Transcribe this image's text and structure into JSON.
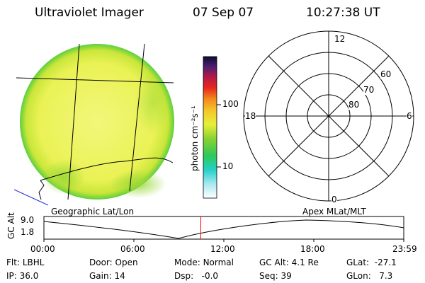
{
  "header": {
    "instrument": "Ultraviolet Imager",
    "date": "07 Sep 07",
    "time": "10:27:38 UT"
  },
  "colorbar": {
    "unit_label": "photon cm⁻²s⁻¹",
    "ticks": [
      "100",
      "10"
    ],
    "scale": "log"
  },
  "polar_plot": {
    "mlt_labels": [
      "12",
      "18",
      "6",
      "0"
    ],
    "lat_labels": [
      "60",
      "70",
      "80"
    ]
  },
  "frames": {
    "left_caption": "Geographic Lat/Lon",
    "right_caption": "Apex  MLat/MLT"
  },
  "altitude_panel": {
    "ylabel": "GC Alt",
    "ytick_top": "9.0",
    "ytick_bottom": "1.8",
    "xticks": [
      "00:00",
      "06:00",
      "12:00",
      "18:00",
      "23:59"
    ],
    "marker_color": "#ff0000",
    "current_time_fraction": 0.436
  },
  "status": {
    "row1": [
      {
        "label": "Flt:",
        "value": "LBHL"
      },
      {
        "label": "Door:",
        "value": "Open"
      },
      {
        "label": "Mode:",
        "value": "Normal"
      },
      {
        "label": "GC Alt:",
        "value": "4.1 Re"
      },
      {
        "label": "GLat:",
        "value": "-27.1"
      }
    ],
    "row2": [
      {
        "label": "IP:",
        "value": "36.0"
      },
      {
        "label": "Gain:",
        "value": "14"
      },
      {
        "label": "Dsp:",
        "value": "-0.0"
      },
      {
        "label": "Seq:",
        "value": "39"
      },
      {
        "label": "GLon:",
        "value": "7.3"
      }
    ]
  }
}
